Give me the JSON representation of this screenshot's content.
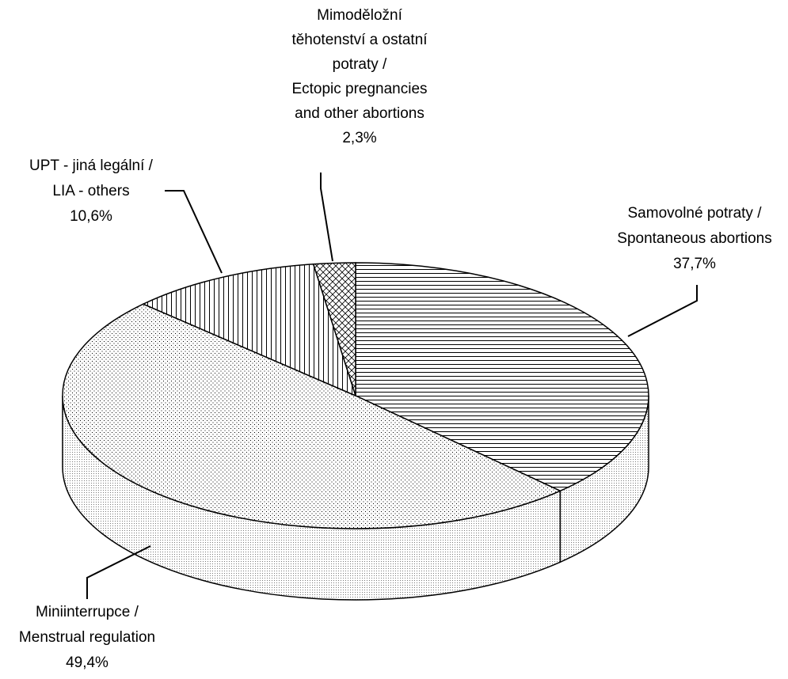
{
  "chart_data": {
    "type": "pie3d",
    "categories": [
      [
        "Samovolné potraty /",
        "Spontaneous abortions"
      ],
      [
        "Miniinterrupce /",
        "Menstrual regulation"
      ],
      [
        "UPT - jiná legální /",
        "LIA - others"
      ],
      [
        "Mimoděložní",
        "těhotenství a ostatní",
        "potraty /",
        "Ectopic pregnancies",
        "and other abortions"
      ]
    ],
    "values": [
      37.7,
      49.4,
      10.6,
      2.3
    ],
    "value_labels": [
      "37,7%",
      "49,4%",
      "10,6%",
      "2,3%"
    ]
  }
}
